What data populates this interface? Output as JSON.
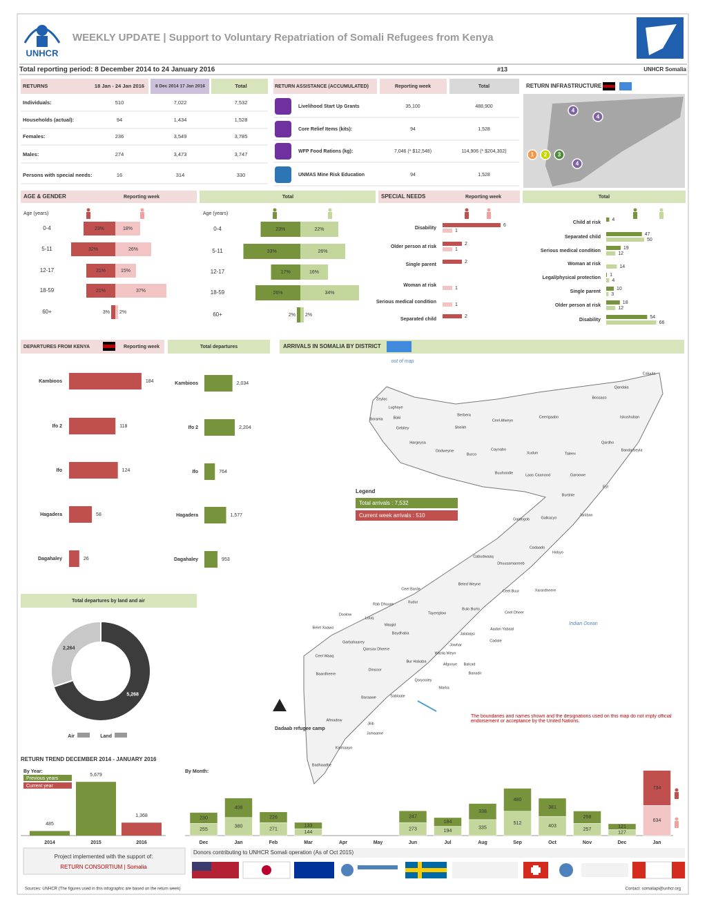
{
  "header": {
    "logo": "UNHCR",
    "title": "WEEKLY UPDATE | Support to Voluntary Repatriation of Somali Refugees from Kenya",
    "period": "Total reporting period: 8 December 2014 to 24 January 2016",
    "week": "#13",
    "office": "UNHCR Somalia"
  },
  "returns": {
    "headers": [
      "RETURNS",
      "18 Jan - 24 Jan 2016",
      "8 Dec 2014 17 Jan 2016",
      "Total"
    ],
    "rows": [
      [
        "Individuals:",
        "510",
        "7,022",
        "7,532"
      ],
      [
        "Households (actual):",
        "94",
        "1,434",
        "1,528"
      ],
      [
        "Females:",
        "236",
        "3,549",
        "3,785"
      ],
      [
        "Males:",
        "274",
        "3,473",
        "3,747"
      ],
      [
        "Persons with special needs:",
        "16",
        "314",
        "330"
      ]
    ]
  },
  "assistance": {
    "headers": [
      "RETURN ASSISTANCE (ACCUMULATED)",
      "Reporting week",
      "Total"
    ],
    "rows": [
      [
        "Livelihood Start Up Grants",
        "35,100",
        "488,900"
      ],
      [
        "Core Relief Items (kits):",
        "94",
        "1,528"
      ],
      [
        "WFP Food Rations (kg):",
        "7,046 (* $12,548)",
        "114,906 (* $204,302)"
      ],
      [
        "UNMAS Mine Risk Education",
        "94",
        "1,528"
      ]
    ]
  },
  "infrastructure": {
    "title": "RETURN INFRASTRUCTURE",
    "markers": [
      "1",
      "2",
      "3",
      "4"
    ]
  },
  "age_gender": {
    "title": "AGE & GENDER",
    "axis_label": "Age (years)"
  },
  "special_needs": {
    "title": "SPECIAL NEEDS"
  },
  "departures": {
    "title": "DEPARTURES FROM KENYA"
  },
  "trend": {
    "title": "RETURN TREND DECEMBER 2014 - JANUARY 2016"
  },
  "chart_data": [
    {
      "type": "hbar_diverging",
      "title": "Reporting week",
      "categories": [
        "0-4",
        "5-11",
        "12-17",
        "18-59",
        "60+"
      ],
      "series": [
        {
          "color": "#c0504d",
          "values": [
            23,
            32,
            21,
            21,
            3
          ],
          "value_labels": [
            "23%",
            "32%",
            "21%",
            "21%",
            "3%"
          ]
        },
        {
          "color": "#f2c4c4",
          "values": [
            18,
            26,
            15,
            37,
            2
          ],
          "value_labels": [
            "18%",
            "26%",
            "15%",
            "37%",
            "2%"
          ]
        }
      ]
    },
    {
      "type": "hbar_diverging",
      "title": "Total",
      "categories": [
        "0-4",
        "5-11",
        "12-17",
        "18-59",
        "60+"
      ],
      "series": [
        {
          "color": "#77933c",
          "values": [
            23,
            33,
            17,
            26,
            2
          ],
          "value_labels": [
            "23%",
            "33%",
            "17%",
            "26%",
            "2%"
          ]
        },
        {
          "color": "#c3d69b",
          "values": [
            22,
            26,
            16,
            34,
            2
          ],
          "value_labels": [
            "22%",
            "26%",
            "16%",
            "34%",
            "2%"
          ]
        }
      ]
    },
    {
      "type": "hbar_grouped",
      "title": "Reporting week",
      "categories": [
        "Disability",
        "Older person at risk",
        "Single parent",
        "Woman at risk",
        "Serious medical condition",
        "Separated child"
      ],
      "series": [
        {
          "color": "#c0504d",
          "values": [
            6,
            2,
            2,
            null,
            null,
            2
          ]
        },
        {
          "color": "#f2c4c4",
          "values": [
            1,
            1,
            null,
            1,
            1,
            null
          ]
        }
      ]
    },
    {
      "type": "hbar_grouped",
      "title": "Total",
      "categories": [
        "Child at risk",
        "Separated child",
        "Serious medical condition",
        "Woman at risk",
        "Legal/physical protection",
        "Single parent",
        "Older person at risk",
        "Disability"
      ],
      "series": [
        {
          "color": "#77933c",
          "values": [
            4,
            47,
            19,
            null,
            1,
            10,
            18,
            54
          ]
        },
        {
          "color": "#c3d69b",
          "values": [
            null,
            50,
            12,
            14,
            4,
            3,
            12,
            66
          ]
        }
      ]
    },
    {
      "type": "hbar",
      "title": "Reporting week",
      "categories": [
        "Kambioos",
        "Ifo 2",
        "Ifo",
        "Hagadera",
        "Dagahaley"
      ],
      "values": [
        184,
        118,
        124,
        58,
        26
      ],
      "color": "#c0504d"
    },
    {
      "type": "hbar",
      "title": "Total departures",
      "categories": [
        "Kambioos",
        "Ifo 2",
        "Ifo",
        "Hagadera",
        "Dagahaley"
      ],
      "values": [
        2034,
        2204,
        764,
        1577,
        953
      ],
      "value_labels": [
        "2,034",
        "2,204",
        "764",
        "1,577",
        "953"
      ],
      "color": "#77933c"
    },
    {
      "type": "pie",
      "title": "Total departures by land and air",
      "categories": [
        "Air",
        "Land"
      ],
      "values": [
        2264,
        5268
      ],
      "value_labels": [
        "2,264",
        "5,268"
      ],
      "colors": [
        "#c8c8c8",
        "#3c3c3c"
      ]
    },
    {
      "type": "bar",
      "title": "By Year:",
      "categories": [
        "2014",
        "2015",
        "2016"
      ],
      "values": [
        485,
        5679,
        1368
      ],
      "value_labels": [
        "485",
        "5,679",
        "1,368"
      ],
      "colors": [
        "#77933c",
        "#77933c",
        "#c0504d"
      ],
      "legend": [
        {
          "name": "Previous years",
          "color": "#77933c"
        },
        {
          "name": "Current year",
          "color": "#c0504d"
        }
      ]
    },
    {
      "type": "stacked_bar",
      "title": "By Month:",
      "categories": [
        "Dec",
        "Jan",
        "Feb",
        "Mar",
        "Apr",
        "May",
        "Jun",
        "Jul",
        "Aug",
        "Sep",
        "Oct",
        "Nov",
        "Dec",
        "Jan"
      ],
      "series": [
        {
          "values": [
            255,
            380,
            271,
            144,
            null,
            null,
            273,
            194,
            335,
            512,
            403,
            257,
            127,
            634
          ],
          "colors": [
            "#c3d69b",
            "#c3d69b",
            "#c3d69b",
            "#c3d69b",
            "#c3d69b",
            "#c3d69b",
            "#c3d69b",
            "#c3d69b",
            "#c3d69b",
            "#c3d69b",
            "#c3d69b",
            "#c3d69b",
            "#c3d69b",
            "#f2c4c4"
          ]
        },
        {
          "values": [
            230,
            408,
            226,
            133,
            null,
            null,
            247,
            184,
            338,
            480,
            381,
            258,
            121,
            734
          ],
          "colors": [
            "#77933c",
            "#77933c",
            "#77933c",
            "#77933c",
            "#77933c",
            "#77933c",
            "#77933c",
            "#77933c",
            "#77933c",
            "#77933c",
            "#77933c",
            "#77933c",
            "#77933c",
            "#c0504d"
          ]
        }
      ]
    }
  ],
  "map": {
    "title": "ARRIVALS IN SOMALIA BY DISTRICT",
    "out_of_map": "out of map",
    "ocean": "Indian Ocean",
    "legend_title": "Legend",
    "legend_total": "Total arrivals : 7,532",
    "legend_week": "Current week arrivals : 510",
    "camp": "Dadaab refugee camp",
    "note": "The boundaries and names shown and the designations used on this map do not imply official endorsement or acceptance by the United Nations.",
    "districts": [
      "Caluula",
      "Qandala",
      "Bossaso",
      "Iskushuban",
      "Qardho",
      "Bandarbeyla",
      "Ceel Afweyn",
      "Ceerigaabo",
      "Zeylac",
      "Lughaye",
      "Baki",
      "Borama",
      "Gebiley",
      "Berbera",
      "Sheikh",
      "Hargeysa",
      "Oodweyne",
      "Burco",
      "Caynabo",
      "Xudun",
      "Taleex",
      "Buuhoodle",
      "Laas Caanood",
      "Garoowe",
      "Eyl",
      "Burtinle",
      "Galkacyo",
      "Jariiban",
      "Galdogob",
      "Hobyo",
      "Cadaado",
      "Cabudwaaq",
      "Dhuusamarreeb",
      "Ceel Buur",
      "Xarardheere",
      "Beled Weyne",
      "Ceel Barde",
      "Rab Dhuure",
      "Tayeeglow",
      "Bulo Burto",
      "Ceel Dheer",
      "Xudur",
      "Waajid",
      "Baydhaba",
      "Belet Xaawo",
      "Doolow",
      "Luuq",
      "Garbahaarey",
      "Ceel Waaq",
      "Qansax Dheere",
      "Jowhar",
      "Cadale",
      "Jalalaqsi",
      "Aadan Yabaal",
      "Bur Hakaba",
      "Wanla Weyn",
      "Afgooye",
      "Balcad",
      "Dinsoor",
      "Baardheere",
      "Qoryooley",
      "Marka",
      "Sablaale",
      "Baraawe",
      "Banadir",
      "Afmadow",
      "Jilib",
      "Jamaame",
      "Kismaayo",
      "Badhaadhe"
    ]
  },
  "footer": {
    "support": "Project implemented with the support of:",
    "consortium": "RETURN CONSORTIUM | Somalia",
    "donors": "Donors contributing to UNHCR Somali operation (As of Oct 2015)",
    "sources": "Sources: UNHCR (The figures used in this infographic are based on the return week)",
    "contact": "Contact: somaliapi@unhcr.org"
  }
}
